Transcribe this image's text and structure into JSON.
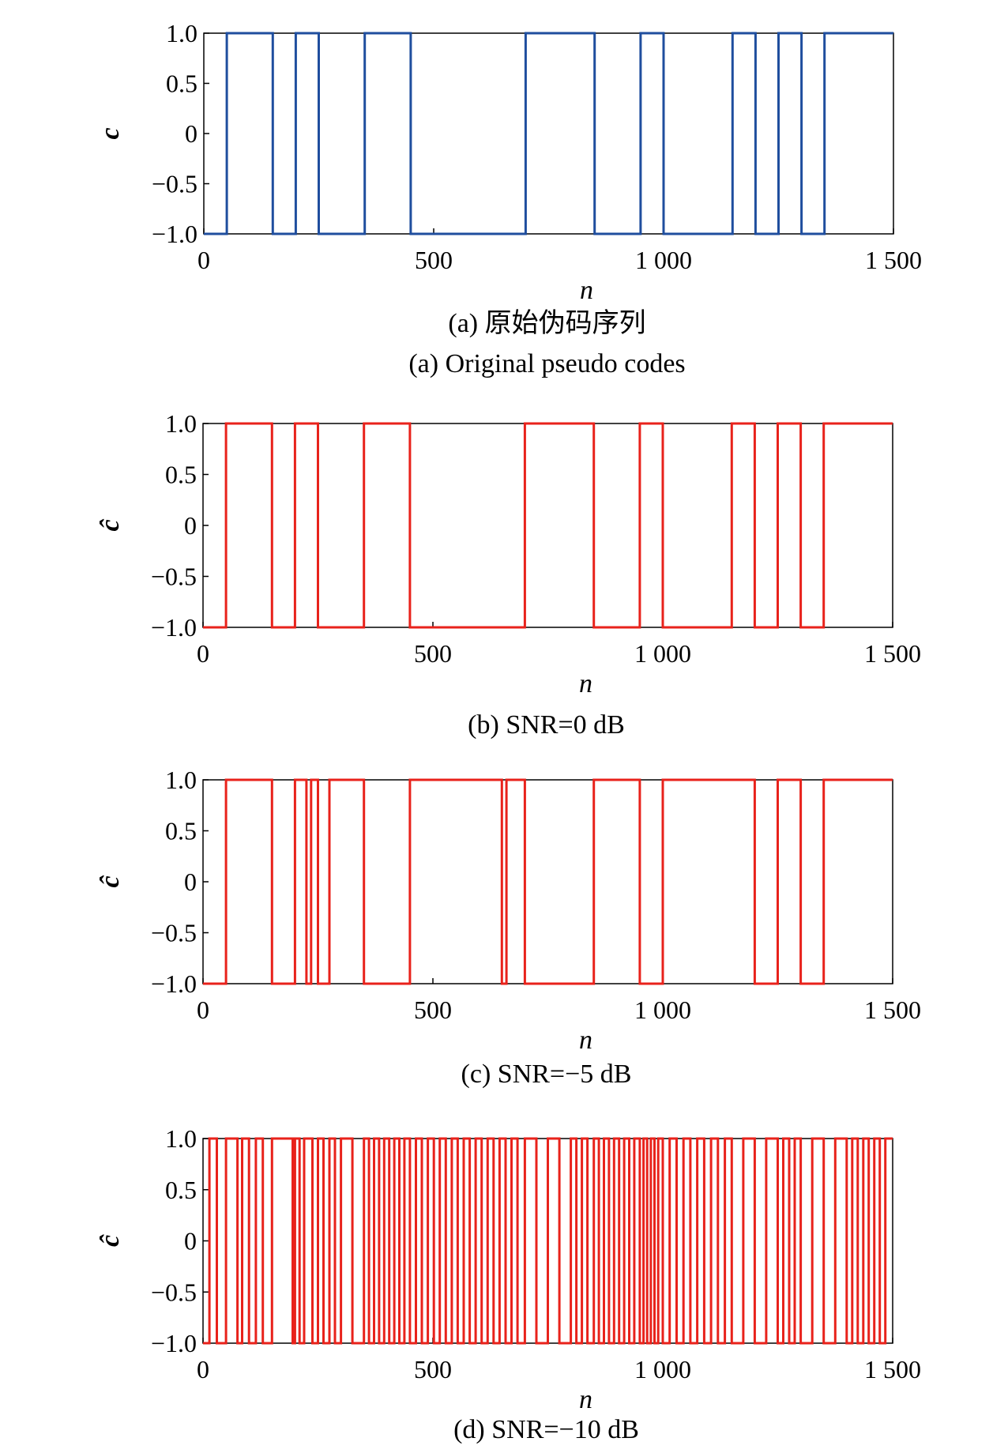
{
  "chart_data": [
    {
      "type": "line",
      "caption_cn": "(a) 原始伪码序列",
      "caption_en": "(a) Original pseudo codes",
      "xlabel": "n",
      "ylabel": "c",
      "xlim": [
        0,
        1500
      ],
      "ylim": [
        -1.0,
        1.0
      ],
      "xticks": [
        "0",
        "500",
        "1 000",
        "1 500"
      ],
      "yticks": [
        "1.0",
        "0.5",
        "0",
        "−0.5",
        "−1.0"
      ],
      "grid": false,
      "color": "#1f4e9e",
      "series": [
        {
          "x": [
            0,
            50,
            150,
            200,
            250,
            350,
            450,
            700,
            850,
            950,
            1000,
            1150,
            1200,
            1250,
            1300,
            1350,
            1500
          ],
          "y": [
            -1,
            1,
            -1,
            1,
            -1,
            1,
            -1,
            1,
            -1,
            1,
            -1,
            1,
            -1,
            1,
            -1,
            1,
            1
          ]
        }
      ]
    },
    {
      "type": "line",
      "caption_cn": "",
      "caption_en": "(b) SNR=0 dB",
      "xlabel": "n",
      "ylabel": "ĉ",
      "xlim": [
        0,
        1500
      ],
      "ylim": [
        -1.0,
        1.0
      ],
      "xticks": [
        "0",
        "500",
        "1 000",
        "1 500"
      ],
      "yticks": [
        "1.0",
        "0.5",
        "0",
        "−0.5",
        "−1.0"
      ],
      "grid": false,
      "color": "#e8221b",
      "series": [
        {
          "x": [
            0,
            50,
            150,
            200,
            250,
            350,
            450,
            700,
            850,
            950,
            1000,
            1150,
            1200,
            1250,
            1300,
            1350,
            1500
          ],
          "y": [
            -1,
            1,
            -1,
            1,
            -1,
            1,
            -1,
            1,
            -1,
            1,
            -1,
            1,
            -1,
            1,
            -1,
            1,
            1
          ]
        }
      ]
    },
    {
      "type": "line",
      "caption_cn": "",
      "caption_en": "(c) SNR=−5 dB",
      "xlabel": "n",
      "ylabel": "ĉ",
      "xlim": [
        0,
        1500
      ],
      "ylim": [
        -1.0,
        1.0
      ],
      "xticks": [
        "0",
        "500",
        "1 000",
        "1 500"
      ],
      "yticks": [
        "1.0",
        "0.5",
        "0",
        "−0.5",
        "−1.0"
      ],
      "grid": false,
      "color": "#e8221b",
      "series": [
        {
          "x": [
            0,
            50,
            150,
            200,
            225,
            235,
            250,
            275,
            350,
            450,
            650,
            660,
            700,
            850,
            950,
            1000,
            1150,
            1200,
            1250,
            1300,
            1350,
            1500
          ],
          "y": [
            -1,
            1,
            -1,
            1,
            -1,
            1,
            -1,
            1,
            -1,
            1,
            -1,
            1,
            -1,
            1,
            -1,
            1,
            1,
            -1,
            1,
            -1,
            1,
            1
          ]
        }
      ]
    },
    {
      "type": "line",
      "caption_cn": "",
      "caption_en": "(d) SNR=−10 dB",
      "xlabel": "n",
      "ylabel": "ĉ",
      "xlim": [
        0,
        1500
      ],
      "ylim": [
        -1.0,
        1.0
      ],
      "xticks": [
        "0",
        "500",
        "1 000",
        "1 500"
      ],
      "yticks": [
        "1.0",
        "0.5",
        "0",
        "−0.5",
        "−1.0"
      ],
      "grid": false,
      "color": "#e8221b",
      "series": [
        {
          "x": [
            0,
            14,
            30,
            50,
            75,
            85,
            100,
            115,
            130,
            150,
            195,
            200,
            210,
            220,
            238,
            250,
            262,
            275,
            287,
            300,
            325,
            350,
            361,
            372,
            383,
            394,
            405,
            416,
            427,
            438,
            450,
            463,
            476,
            489,
            502,
            515,
            528,
            541,
            554,
            567,
            580,
            593,
            606,
            619,
            632,
            645,
            658,
            671,
            684,
            700,
            725,
            750,
            775,
            800,
            812,
            824,
            836,
            850,
            861,
            872,
            883,
            894,
            905,
            916,
            927,
            938,
            950,
            958,
            966,
            974,
            982,
            990,
            1000,
            1015,
            1030,
            1045,
            1060,
            1075,
            1090,
            1105,
            1120,
            1135,
            1150,
            1175,
            1200,
            1225,
            1250,
            1262,
            1275,
            1287,
            1300,
            1325,
            1350,
            1375,
            1400,
            1412,
            1424,
            1436,
            1448,
            1460,
            1472,
            1484,
            1500
          ],
          "y": [
            -1,
            1,
            -1,
            1,
            -1,
            1,
            -1,
            1,
            -1,
            1,
            -1,
            1,
            -1,
            1,
            -1,
            1,
            -1,
            1,
            -1,
            1,
            -1,
            1,
            -1,
            1,
            -1,
            1,
            -1,
            1,
            -1,
            1,
            -1,
            1,
            -1,
            1,
            -1,
            1,
            -1,
            1,
            -1,
            1,
            -1,
            1,
            -1,
            1,
            -1,
            1,
            -1,
            1,
            -1,
            1,
            -1,
            1,
            -1,
            1,
            -1,
            1,
            -1,
            1,
            -1,
            1,
            -1,
            1,
            -1,
            1,
            -1,
            1,
            -1,
            1,
            -1,
            1,
            -1,
            1,
            -1,
            1,
            -1,
            1,
            -1,
            1,
            -1,
            1,
            -1,
            1,
            -1,
            1,
            -1,
            1,
            -1,
            1,
            -1,
            1,
            -1,
            1,
            -1,
            1,
            -1,
            1,
            -1,
            1,
            -1,
            1,
            -1,
            1,
            1
          ]
        }
      ]
    }
  ]
}
